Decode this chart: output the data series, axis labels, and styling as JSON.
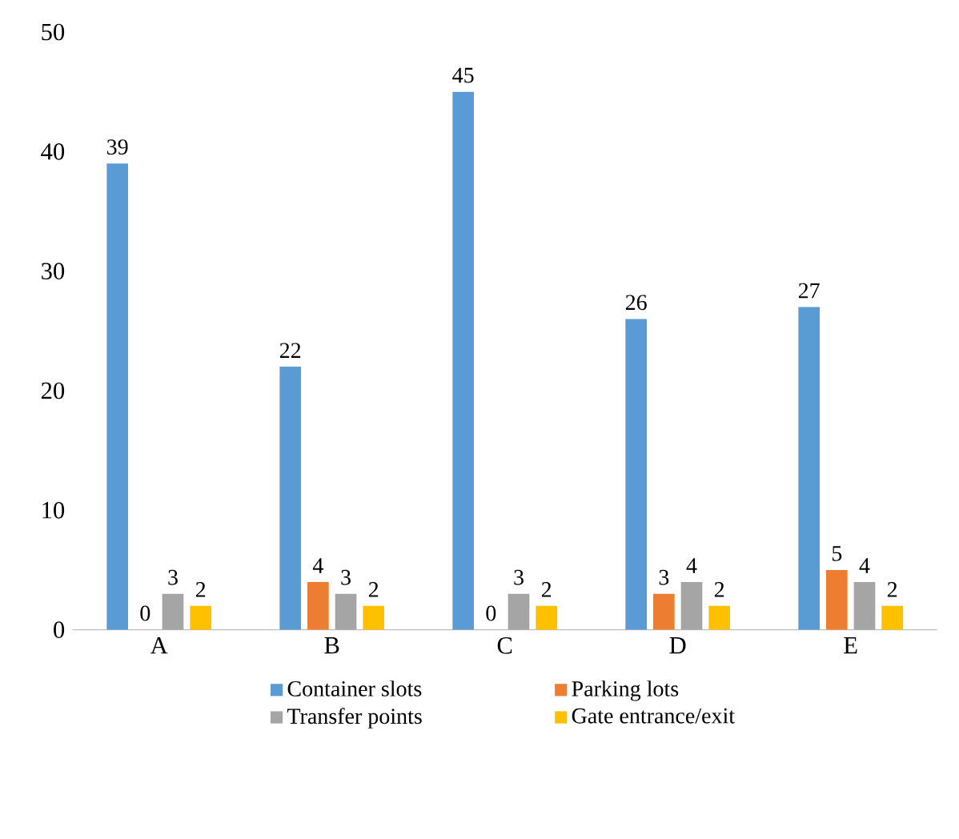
{
  "chart_data": {
    "type": "bar",
    "categories": [
      "A",
      "B",
      "C",
      "D",
      "E"
    ],
    "series": [
      {
        "name": "Container slots",
        "color": "#5b9bd5",
        "values": [
          39,
          22,
          45,
          26,
          27
        ]
      },
      {
        "name": "Parking lots",
        "color": "#ed7d31",
        "values": [
          0,
          4,
          0,
          3,
          5
        ]
      },
      {
        "name": "Transfer points",
        "color": "#a5a5a5",
        "values": [
          3,
          3,
          3,
          4,
          4
        ]
      },
      {
        "name": "Gate entrance/exit",
        "color": "#ffc000",
        "values": [
          2,
          2,
          2,
          2,
          2
        ]
      }
    ],
    "ylim": [
      0,
      50
    ],
    "yticks": [
      0,
      10,
      20,
      30,
      40,
      50
    ],
    "data_labels": true,
    "legend": "bottom",
    "grid": false
  }
}
